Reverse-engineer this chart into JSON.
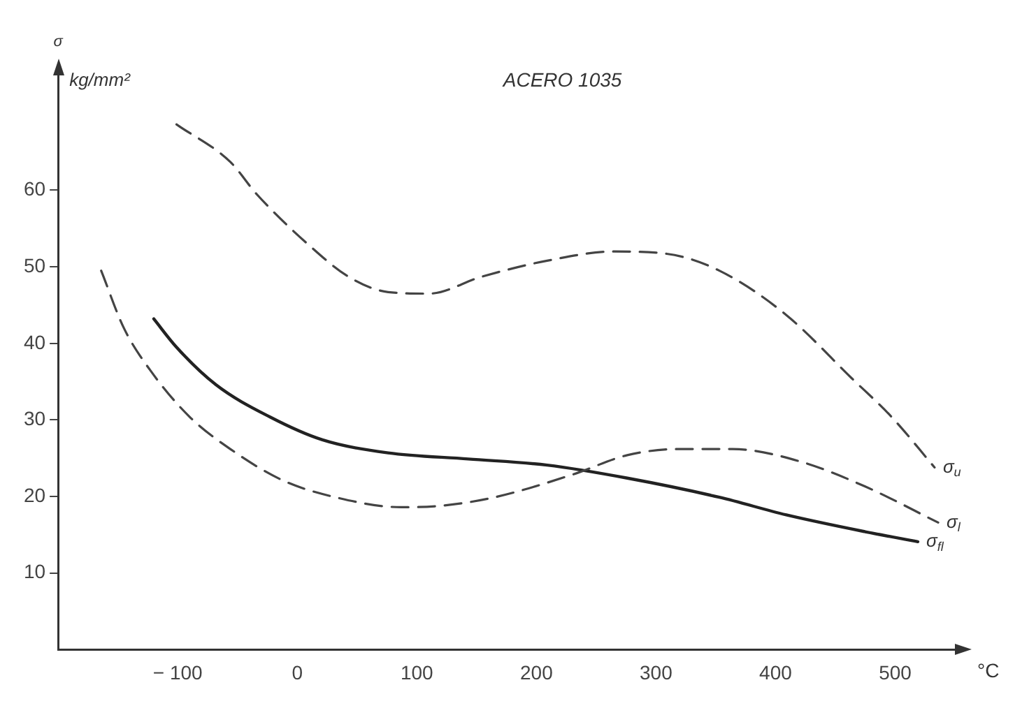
{
  "chart_data": {
    "type": "line",
    "title": "ACERO 1035",
    "ylabel": "kg/mm²",
    "xlabel": "°C",
    "annotations": [
      "σ"
    ],
    "xlim": [
      -200,
      550
    ],
    "xticks": [
      -100,
      0,
      100,
      200,
      300,
      400,
      500
    ],
    "ylim": [
      0,
      75
    ],
    "yticks": [
      10,
      20,
      30,
      40,
      50,
      60
    ],
    "grid": false,
    "legend": false,
    "marker": "none",
    "series": [
      {
        "name": "σ$_{u}$",
        "color": "#444444",
        "line_style": "dashed",
        "x": [
          -101,
          -56,
          -34,
          10,
          43,
          76,
          110,
          154,
          209,
          265,
          309,
          353,
          409,
          464,
          497,
          533
        ],
        "values": [
          68.6,
          63.7,
          59.5,
          52.8,
          48.7,
          46.7,
          46.5,
          48.7,
          50.8,
          52,
          51.7,
          49.5,
          43.7,
          35.4,
          30.4,
          23.8
        ]
      },
      {
        "name": "σ$_{l}$",
        "color": "#444444",
        "line_style": "dashed",
        "x": [
          -164,
          -145,
          -123,
          -90,
          -56,
          -12,
          32,
          87,
          121,
          165,
          231,
          276,
          320,
          364,
          420,
          475,
          536
        ],
        "values": [
          49.5,
          42,
          36.5,
          30.4,
          26.2,
          22.1,
          19.9,
          18.6,
          18.8,
          19.9,
          22.9,
          25.4,
          26.2,
          26.2,
          24.6,
          21.3,
          16.6
        ]
      },
      {
        "name": "σ$_{fl}$",
        "color": "#222222",
        "line_style": "solid",
        "x": [
          -120,
          -101,
          -68,
          -23,
          21,
          76,
          143,
          209,
          276,
          353,
          409,
          475,
          519
        ],
        "values": [
          43.2,
          39.5,
          34.6,
          30.4,
          27.4,
          25.7,
          24.9,
          24.1,
          22.4,
          19.9,
          17.6,
          15.4,
          14.1
        ]
      }
    ]
  }
}
